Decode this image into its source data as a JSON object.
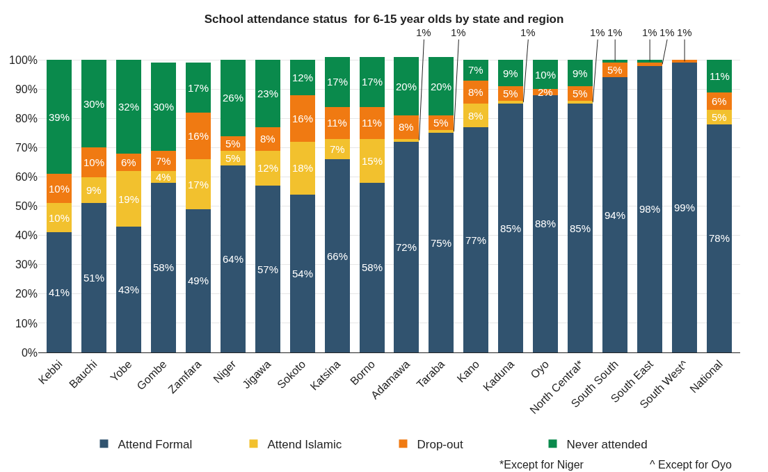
{
  "chart_data": {
    "type": "bar",
    "stacked": true,
    "title": "School attendance status  for 6-15 year olds by state and region",
    "categories": [
      "Kebbi",
      "Bauchi",
      "Yobe",
      "Gombe",
      "Zamfara",
      "Niger",
      "Jigawa",
      "Sokoto",
      "Katsina",
      "Borno",
      "Adamawa",
      "Taraba",
      "Kano",
      "Kaduna",
      "Oyo",
      "North Central*",
      "South South",
      "South East",
      "South West^",
      "National"
    ],
    "series": [
      {
        "name": "Attend Formal",
        "color": "#31536f",
        "values": [
          41,
          51,
          43,
          58,
          49,
          64,
          57,
          54,
          66,
          58,
          72,
          75,
          77,
          85,
          88,
          85,
          94,
          98,
          99,
          78
        ],
        "value_labels": [
          "41%",
          "51%",
          "43%",
          "58%",
          "49%",
          "64%",
          "57%",
          "54%",
          "66%",
          "58%",
          "72%",
          "75%",
          "77%",
          "85%",
          "88%",
          "85%",
          "94%",
          "98%",
          "99%",
          "78%"
        ]
      },
      {
        "name": "Attend Islamic",
        "color": "#f2c12e",
        "values": [
          10,
          9,
          19,
          4,
          17,
          5,
          12,
          18,
          7,
          15,
          1,
          1,
          8,
          1,
          0,
          1,
          0,
          0,
          0,
          5
        ],
        "value_labels": [
          "10%",
          "9%",
          "19%",
          "4%",
          "17%",
          "5%",
          "12%",
          "18%",
          "7%",
          "15%",
          "1%",
          "1%",
          "8%",
          "1%",
          null,
          "1%",
          null,
          null,
          null,
          "5%"
        ]
      },
      {
        "name": "Drop-out",
        "color": "#f07a12",
        "values": [
          10,
          10,
          6,
          7,
          16,
          5,
          8,
          16,
          11,
          11,
          8,
          5,
          8,
          5,
          2,
          5,
          5,
          1,
          1,
          6
        ],
        "value_labels": [
          "10%",
          "10%",
          "6%",
          "7%",
          "16%",
          "5%",
          "8%",
          "16%",
          "11%",
          "11%",
          "8%",
          "5%",
          "8%",
          "5%",
          "2%",
          "5%",
          "5%",
          "1%",
          "1%",
          "6%"
        ]
      },
      {
        "name": "Never attended",
        "color": "#0a8a4c",
        "values": [
          39,
          30,
          32,
          30,
          17,
          26,
          23,
          12,
          17,
          17,
          20,
          20,
          7,
          9,
          10,
          9,
          1,
          1,
          0,
          11
        ],
        "value_labels": [
          "39%",
          "30%",
          "32%",
          "30%",
          "17%",
          "26%",
          "23%",
          "12%",
          "17%",
          "17%",
          "20%",
          "20%",
          "7%",
          "9%",
          "10%",
          "9%",
          "1%",
          "1%",
          null,
          "11%"
        ]
      }
    ],
    "ylim": [
      0,
      101
    ],
    "yticks": [
      {
        "value": 0,
        "label": "0%"
      },
      {
        "value": 10,
        "label": "10%"
      },
      {
        "value": 20,
        "label": "20%"
      },
      {
        "value": 30,
        "label": "30%"
      },
      {
        "value": 40,
        "label": "40%"
      },
      {
        "value": 50,
        "label": "50%"
      },
      {
        "value": 60,
        "label": "60%"
      },
      {
        "value": 70,
        "label": "70%"
      },
      {
        "value": 80,
        "label": "80%"
      },
      {
        "value": 90,
        "label": "90%"
      },
      {
        "value": 100,
        "label": "100%"
      }
    ],
    "grid": "y",
    "legend": "bottom",
    "annotations": [
      "*Except for Niger",
      "^ Except for Oyo"
    ]
  }
}
